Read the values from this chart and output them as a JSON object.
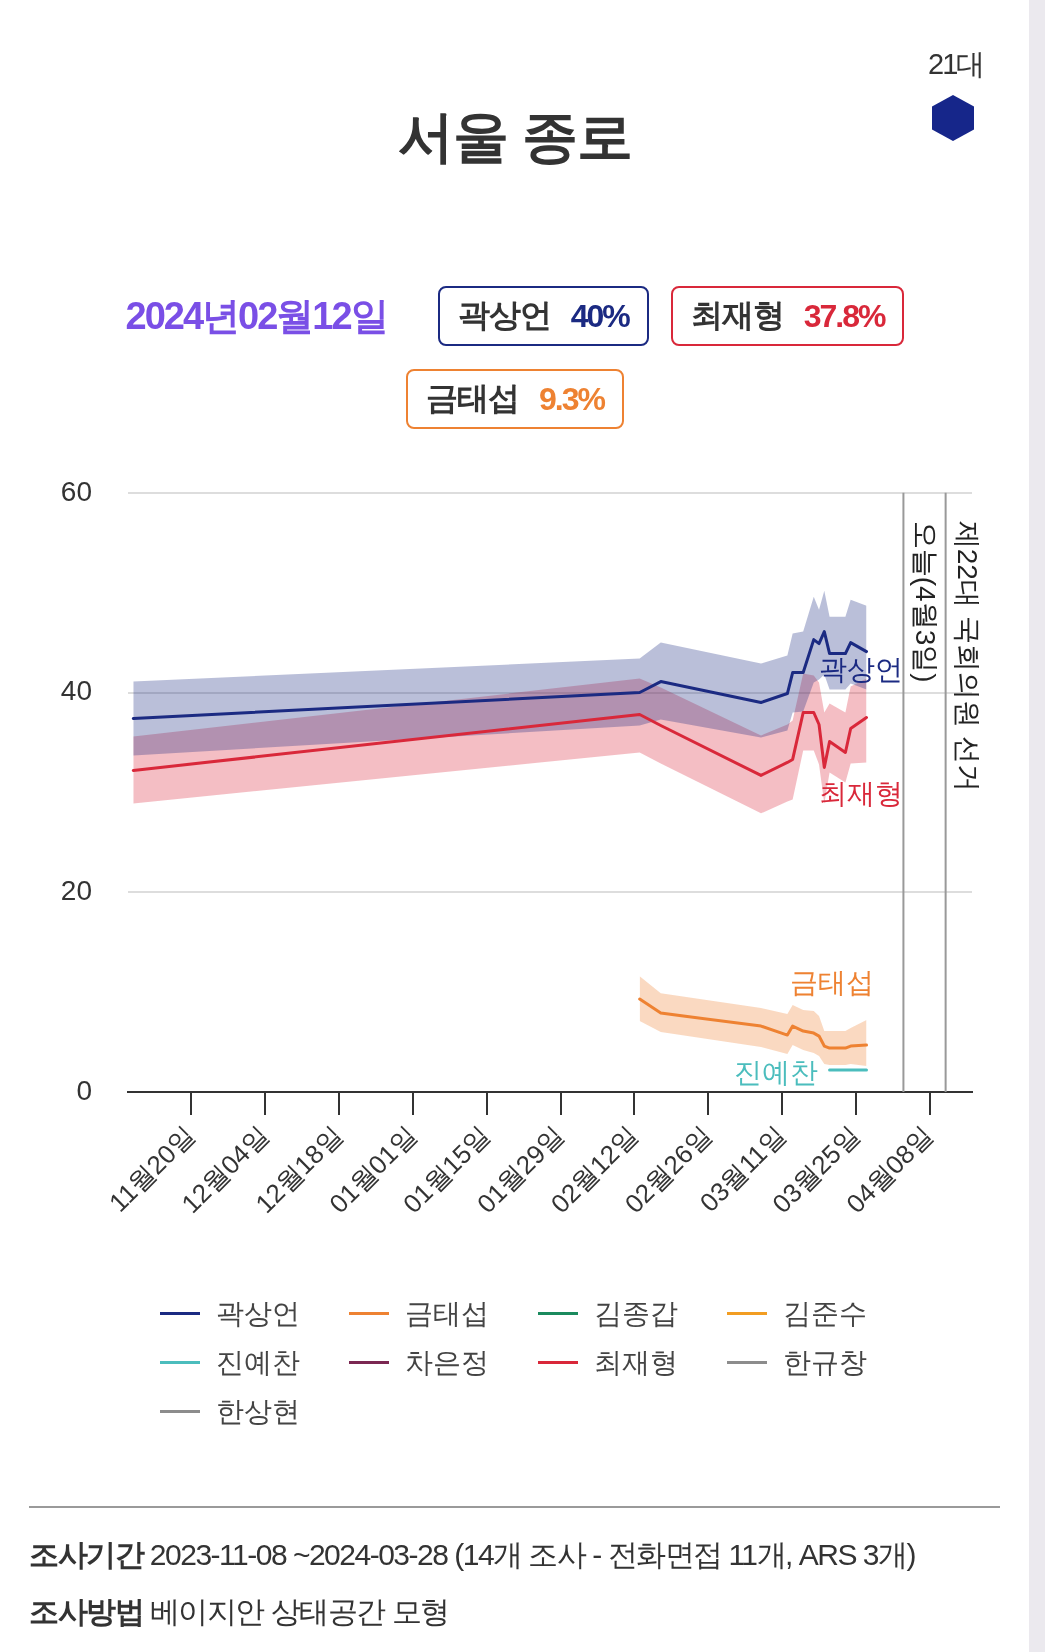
{
  "chart_data": {
    "type": "line",
    "title": "서울 종로",
    "subtitle": "2024년02월12일",
    "x": [
      "2023-11-09",
      "2024-02-13",
      "2024-02-17",
      "2024-03-07",
      "2024-03-12",
      "2024-03-13",
      "2024-03-15",
      "2024-03-17",
      "2024-03-18",
      "2024-03-19",
      "2024-03-20",
      "2024-03-23",
      "2024-03-24",
      "2024-03-27"
    ],
    "xlim": [
      "2023-11-08",
      "2024-04-16"
    ],
    "xticks": [
      {
        "value": "2023-11-20",
        "label": "11월20일"
      },
      {
        "value": "2023-12-04",
        "label": "12월04일"
      },
      {
        "value": "2023-12-18",
        "label": "12월18일"
      },
      {
        "value": "2024-01-01",
        "label": "01월01일"
      },
      {
        "value": "2024-01-15",
        "label": "01월15일"
      },
      {
        "value": "2024-01-29",
        "label": "01월29일"
      },
      {
        "value": "2024-02-12",
        "label": "02월12일"
      },
      {
        "value": "2024-02-26",
        "label": "02월26일"
      },
      {
        "value": "2024-03-11",
        "label": "03월11일"
      },
      {
        "value": "2024-03-25",
        "label": "03월25일"
      },
      {
        "value": "2024-04-08",
        "label": "04월08일"
      }
    ],
    "ylim": [
      0,
      60
    ],
    "yticks": [
      0,
      20,
      40,
      60
    ],
    "grid": "y",
    "legend": "bottom",
    "marker": "none",
    "line_style": "solid",
    "series": [
      {
        "name": "곽상언",
        "color": "#1b2a82",
        "values": [
          37.4,
          40,
          41.1,
          39.0,
          39.9,
          42.0,
          42.0,
          45.3,
          44.9,
          46.1,
          43.9,
          43.9,
          45.0,
          44.1
        ],
        "upper": [
          41.1,
          43.4,
          45.0,
          42.9,
          43.7,
          45.9,
          46.1,
          49.6,
          48.3,
          50.2,
          47.6,
          47.6,
          49.3,
          48.7
        ],
        "lower": [
          33.7,
          36.7,
          37.3,
          35.5,
          36.2,
          38.0,
          38.1,
          41.0,
          41.3,
          41.8,
          40.3,
          40.3,
          40.9,
          40.3
        ]
      },
      {
        "name": "금태섭",
        "color": "#ee8232",
        "values": [
          null,
          9.3,
          7.9,
          6.6,
          5.7,
          6.6,
          6.1,
          5.9,
          5.6,
          4.6,
          4.4,
          4.4,
          4.6,
          4.7
        ],
        "upper": [
          null,
          11.6,
          9.9,
          8.4,
          7.8,
          8.7,
          8.2,
          8.1,
          7.6,
          6.1,
          6.1,
          6.1,
          6.4,
          7.2
        ],
        "lower": [
          null,
          7.1,
          6.0,
          4.5,
          3.8,
          4.7,
          4.2,
          3.9,
          3.6,
          2.8,
          2.7,
          2.7,
          2.8,
          2.6
        ]
      },
      {
        "name": "김종갑",
        "color": "#1b8a5e",
        "values": [
          null,
          null,
          null,
          null,
          null,
          null,
          null,
          null,
          null,
          null,
          null,
          null,
          null,
          null
        ]
      },
      {
        "name": "김준수",
        "color": "#f29d22",
        "values": [
          null,
          null,
          null,
          null,
          null,
          null,
          null,
          null,
          null,
          null,
          null,
          null,
          null,
          null
        ]
      },
      {
        "name": "진예찬",
        "color": "#4bbdbd",
        "values": [
          null,
          null,
          null,
          null,
          null,
          null,
          null,
          null,
          null,
          null,
          2.2,
          2.2,
          2.2,
          2.2
        ]
      },
      {
        "name": "차은정",
        "color": "#7b2752",
        "values": [
          null,
          null,
          null,
          null,
          null,
          null,
          null,
          null,
          null,
          null,
          null,
          null,
          null,
          null
        ]
      },
      {
        "name": "최재형",
        "color": "#d9283a",
        "values": [
          32.2,
          37.8,
          36.7,
          31.7,
          33.0,
          33.3,
          38.0,
          38.0,
          36.8,
          32.5,
          35.1,
          34.0,
          36.4,
          37.5
        ],
        "upper": [
          35.6,
          41.4,
          40.5,
          35.7,
          36.8,
          37.2,
          41.9,
          41.7,
          41.0,
          38.0,
          38.9,
          38.0,
          40.6,
          41.4
        ],
        "lower": [
          28.9,
          34.0,
          32.9,
          27.9,
          29.1,
          29.3,
          34.2,
          34.2,
          32.8,
          28.9,
          32.0,
          31.0,
          32.9,
          33.0
        ]
      },
      {
        "name": "한규창",
        "color": "#8c8c8c",
        "values": [
          null,
          null,
          null,
          null,
          null,
          null,
          null,
          null,
          null,
          null,
          null,
          null,
          null,
          null
        ]
      },
      {
        "name": "한상현",
        "color": "#8c8c8c",
        "values": [
          null,
          null,
          null,
          null,
          null,
          null,
          null,
          null,
          null,
          null,
          null,
          null,
          null,
          null
        ]
      }
    ],
    "ref_lines": [
      {
        "axis": "x",
        "value": "2024-04-03",
        "label": "오늘(4월3일)",
        "color": "#999999"
      },
      {
        "axis": "x",
        "value": "2024-04-11",
        "label": "제22대 국회의원 선거",
        "color": "#999999"
      }
    ],
    "annotations": [
      "21대",
      "곽상언 40%",
      "최재형 37.8%",
      "금태섭 9.3%",
      "조사기간 2023-11-08 ~2024-03-28 (14개 조사 - 전화면접 11개, ARS 3개)",
      "조사방법 베이지안 상태공간 모형"
    ]
  }
}
